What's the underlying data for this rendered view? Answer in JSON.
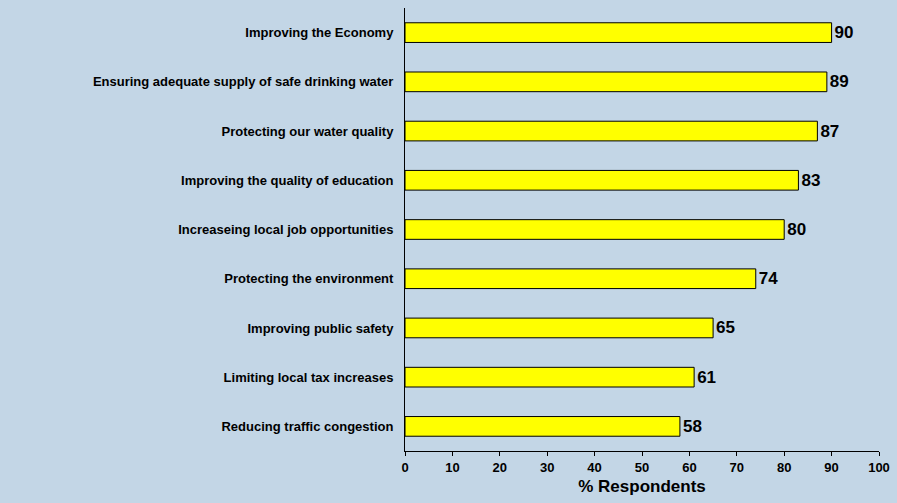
{
  "chart_data": {
    "type": "bar",
    "orientation": "horizontal",
    "categories": [
      "Improving the Economy",
      "Ensuring adequate supply of safe drinking water",
      "Protecting our water quality",
      "Improving the quality of education",
      "Increaseing local job opportunities",
      "Protecting the environment",
      "Improving public safety",
      "Limiting local tax increases",
      "Reducing traffic congestion"
    ],
    "values": [
      90,
      89,
      87,
      83,
      80,
      74,
      65,
      61,
      58
    ],
    "color": "#ffff00",
    "xlabel": "% Respondents",
    "xlim": [
      0,
      100
    ],
    "xticks": [
      0,
      10,
      20,
      30,
      40,
      50,
      60,
      70,
      80,
      90,
      100
    ],
    "grid": false,
    "data_labels": true
  }
}
